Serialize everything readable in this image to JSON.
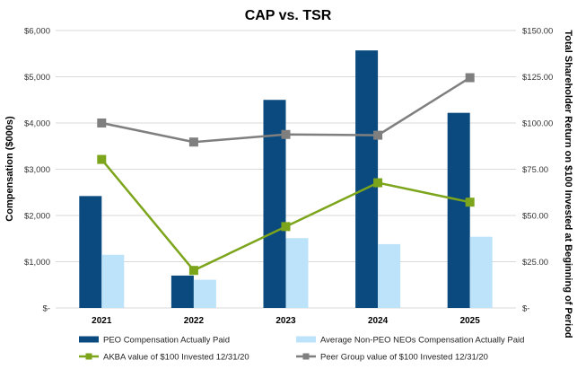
{
  "chart_data": {
    "type": "bar",
    "title": "CAP vs. TSR",
    "categories": [
      "2021",
      "2022",
      "2023",
      "2024",
      "2025"
    ],
    "ylabel": "Compensation ($000s)",
    "y2label": "Total Shareholder Return on $100 Invested at Beginning of Period",
    "ylim": [
      0,
      6000
    ],
    "y2lim": [
      0,
      150
    ],
    "yticks": [
      "$-",
      "$1,000",
      "$2,000",
      "$3,000",
      "$4,000",
      "$5,000",
      "$6,000"
    ],
    "y2ticks": [
      "$-",
      "$25.00",
      "$50.00",
      "$75.00",
      "$100.00",
      "$125.00",
      "$150.00"
    ],
    "grid": true,
    "legend_position": "bottom",
    "bar_series": [
      {
        "name": "PEO Compensation Actually Paid",
        "color": "#0b4a7e",
        "values": [
          2420,
          700,
          4500,
          5570,
          4220
        ]
      },
      {
        "name": "Average Non-PEO NEOs Compensation Actually Paid",
        "color": "#bde3fb",
        "values": [
          1150,
          610,
          1510,
          1380,
          1540
        ]
      }
    ],
    "line_series": [
      {
        "name": "AKBA value of $100 Invested 12/31/20",
        "color": "#7ca51b",
        "marker": "square",
        "axis": "right",
        "values": [
          80.3,
          20.3,
          44.0,
          67.7,
          57.2
        ]
      },
      {
        "name": "Peer Group value of $100 Invested 12/31/20",
        "color": "#7f7f7f",
        "marker": "square",
        "axis": "right",
        "values": [
          100.0,
          89.7,
          93.8,
          93.4,
          124.5
        ]
      }
    ]
  }
}
